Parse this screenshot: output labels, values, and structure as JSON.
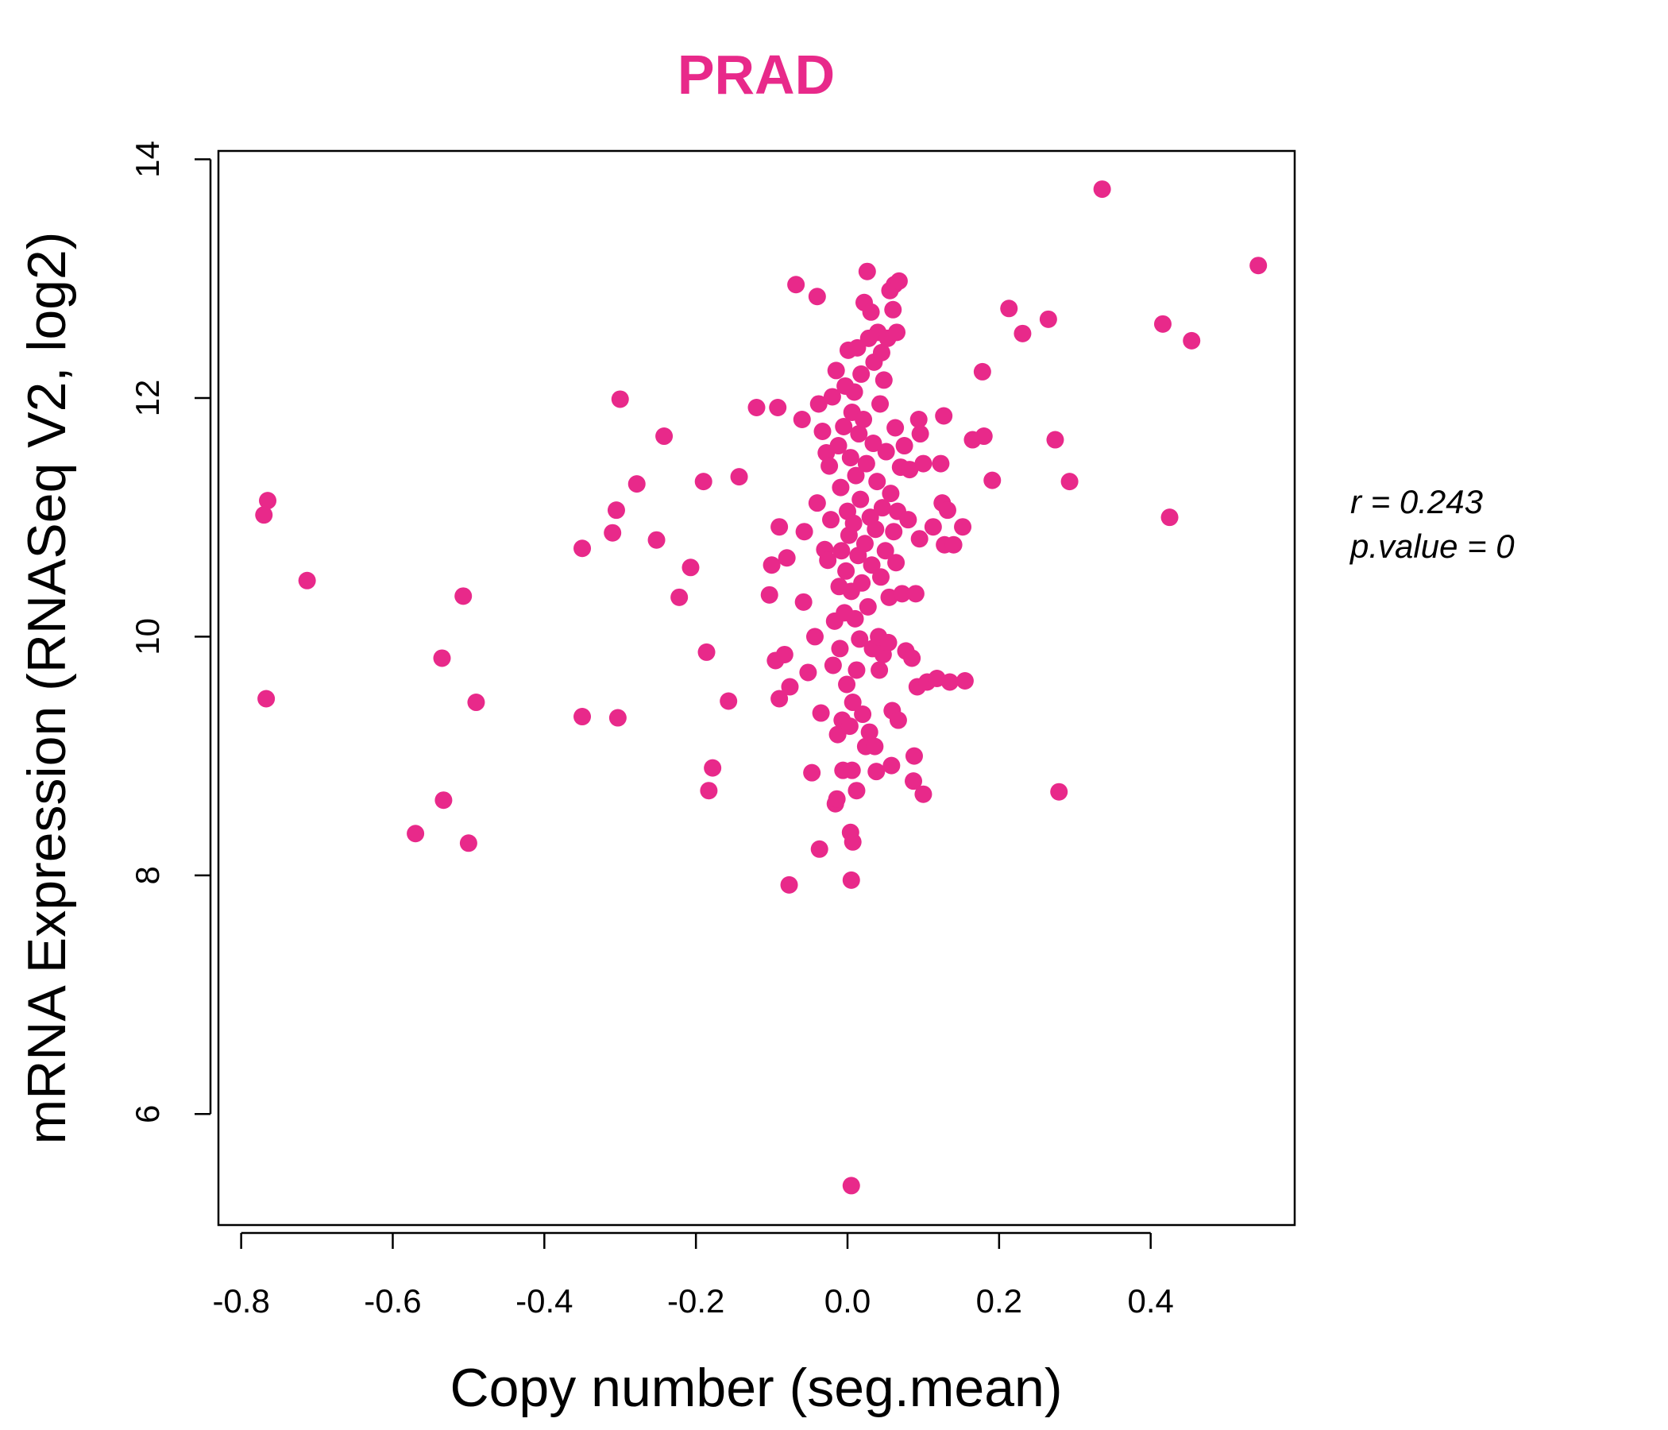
{
  "chart_data": {
    "type": "scatter",
    "title": "PRAD",
    "xlabel": "Copy number (seg.mean)",
    "ylabel": "mRNA Expression (RNASeq V2, log2)",
    "xlim": [
      -0.83,
      0.59
    ],
    "ylim": [
      5.07,
      14.07
    ],
    "x_ticks": [
      -0.8,
      -0.6,
      -0.4,
      -0.2,
      0.0,
      0.2,
      0.4
    ],
    "x_tick_labels": [
      "-0.8",
      "-0.6",
      "-0.4",
      "-0.2",
      "0.0",
      "0.2",
      "0.4"
    ],
    "y_ticks": [
      6,
      8,
      10,
      12,
      14
    ],
    "y_tick_labels": [
      "6",
      "8",
      "10",
      "12",
      "14"
    ],
    "grid": false,
    "legend": "none",
    "point_color": "#E8298A",
    "title_color": "#E8298A",
    "annotation": {
      "r_label": "r = 0.243",
      "p_label": "p.value = 0"
    },
    "points": [
      {
        "x": -0.77,
        "y": 11.02
      },
      {
        "x": -0.765,
        "y": 11.14
      },
      {
        "x": -0.767,
        "y": 9.48
      },
      {
        "x": -0.713,
        "y": 10.47
      },
      {
        "x": -0.57,
        "y": 8.35
      },
      {
        "x": -0.535,
        "y": 9.82
      },
      {
        "x": -0.533,
        "y": 8.63
      },
      {
        "x": -0.507,
        "y": 10.34
      },
      {
        "x": -0.5,
        "y": 8.27
      },
      {
        "x": -0.49,
        "y": 9.45
      },
      {
        "x": -0.35,
        "y": 10.74
      },
      {
        "x": -0.35,
        "y": 9.33
      },
      {
        "x": -0.31,
        "y": 10.87
      },
      {
        "x": -0.305,
        "y": 11.06
      },
      {
        "x": -0.303,
        "y": 9.32
      },
      {
        "x": -0.3,
        "y": 11.99
      },
      {
        "x": -0.278,
        "y": 11.28
      },
      {
        "x": -0.252,
        "y": 10.81
      },
      {
        "x": -0.242,
        "y": 11.68
      },
      {
        "x": -0.222,
        "y": 10.33
      },
      {
        "x": -0.207,
        "y": 10.58
      },
      {
        "x": -0.19,
        "y": 11.3
      },
      {
        "x": -0.186,
        "y": 9.87
      },
      {
        "x": -0.183,
        "y": 8.71
      },
      {
        "x": -0.178,
        "y": 8.9
      },
      {
        "x": -0.157,
        "y": 9.46
      },
      {
        "x": -0.143,
        "y": 11.34
      },
      {
        "x": -0.12,
        "y": 11.92
      },
      {
        "x": -0.103,
        "y": 10.35
      },
      {
        "x": -0.1,
        "y": 10.6
      },
      {
        "x": -0.095,
        "y": 9.8
      },
      {
        "x": -0.092,
        "y": 11.92
      },
      {
        "x": -0.09,
        "y": 10.92
      },
      {
        "x": -0.09,
        "y": 9.48
      },
      {
        "x": -0.083,
        "y": 9.85
      },
      {
        "x": -0.08,
        "y": 10.66
      },
      {
        "x": -0.077,
        "y": 7.92
      },
      {
        "x": -0.076,
        "y": 9.58
      },
      {
        "x": -0.068,
        "y": 12.95
      },
      {
        "x": -0.06,
        "y": 11.82
      },
      {
        "x": -0.058,
        "y": 10.29
      },
      {
        "x": -0.057,
        "y": 10.88
      },
      {
        "x": -0.052,
        "y": 9.7
      },
      {
        "x": -0.047,
        "y": 8.86
      },
      {
        "x": -0.043,
        "y": 10.0
      },
      {
        "x": -0.04,
        "y": 12.85
      },
      {
        "x": -0.04,
        "y": 11.12
      },
      {
        "x": -0.038,
        "y": 11.95
      },
      {
        "x": -0.037,
        "y": 8.22
      },
      {
        "x": -0.035,
        "y": 9.36
      },
      {
        "x": -0.033,
        "y": 11.72
      },
      {
        "x": -0.03,
        "y": 10.73
      },
      {
        "x": -0.028,
        "y": 11.54
      },
      {
        "x": -0.026,
        "y": 10.64
      },
      {
        "x": -0.024,
        "y": 11.43
      },
      {
        "x": -0.022,
        "y": 10.98
      },
      {
        "x": -0.02,
        "y": 12.01
      },
      {
        "x": -0.019,
        "y": 9.76
      },
      {
        "x": -0.017,
        "y": 10.13
      },
      {
        "x": -0.016,
        "y": 8.6
      },
      {
        "x": -0.015,
        "y": 12.23
      },
      {
        "x": -0.014,
        "y": 8.64
      },
      {
        "x": -0.013,
        "y": 9.18
      },
      {
        "x": -0.012,
        "y": 11.6
      },
      {
        "x": -0.011,
        "y": 10.42
      },
      {
        "x": -0.01,
        "y": 9.9
      },
      {
        "x": -0.009,
        "y": 11.25
      },
      {
        "x": -0.008,
        "y": 10.72
      },
      {
        "x": -0.007,
        "y": 9.3
      },
      {
        "x": -0.006,
        "y": 8.88
      },
      {
        "x": -0.005,
        "y": 11.76
      },
      {
        "x": -0.004,
        "y": 10.2
      },
      {
        "x": -0.003,
        "y": 12.1
      },
      {
        "x": -0.002,
        "y": 10.55
      },
      {
        "x": -0.001,
        "y": 9.6
      },
      {
        "x": 0.0,
        "y": 11.05
      },
      {
        "x": 0.001,
        "y": 12.4
      },
      {
        "x": 0.002,
        "y": 10.85
      },
      {
        "x": 0.003,
        "y": 9.25
      },
      {
        "x": 0.004,
        "y": 11.5
      },
      {
        "x": 0.004,
        "y": 8.36
      },
      {
        "x": 0.005,
        "y": 10.38
      },
      {
        "x": 0.005,
        "y": 5.4
      },
      {
        "x": 0.005,
        "y": 7.96
      },
      {
        "x": 0.006,
        "y": 11.88
      },
      {
        "x": 0.006,
        "y": 8.88
      },
      {
        "x": 0.007,
        "y": 9.45
      },
      {
        "x": 0.007,
        "y": 8.28
      },
      {
        "x": 0.008,
        "y": 10.95
      },
      {
        "x": 0.009,
        "y": 12.05
      },
      {
        "x": 0.01,
        "y": 10.15
      },
      {
        "x": 0.011,
        "y": 11.35
      },
      {
        "x": 0.012,
        "y": 8.71
      },
      {
        "x": 0.012,
        "y": 9.72
      },
      {
        "x": 0.013,
        "y": 12.42
      },
      {
        "x": 0.014,
        "y": 10.68
      },
      {
        "x": 0.015,
        "y": 11.7
      },
      {
        "x": 0.016,
        "y": 9.98
      },
      {
        "x": 0.017,
        "y": 11.15
      },
      {
        "x": 0.018,
        "y": 12.2
      },
      {
        "x": 0.019,
        "y": 10.45
      },
      {
        "x": 0.02,
        "y": 9.35
      },
      {
        "x": 0.021,
        "y": 11.82
      },
      {
        "x": 0.022,
        "y": 12.8
      },
      {
        "x": 0.023,
        "y": 10.78
      },
      {
        "x": 0.024,
        "y": 9.08
      },
      {
        "x": 0.025,
        "y": 11.45
      },
      {
        "x": 0.026,
        "y": 13.06
      },
      {
        "x": 0.027,
        "y": 10.25
      },
      {
        "x": 0.028,
        "y": 12.5
      },
      {
        "x": 0.029,
        "y": 9.2
      },
      {
        "x": 0.03,
        "y": 11.0
      },
      {
        "x": 0.031,
        "y": 12.72
      },
      {
        "x": 0.032,
        "y": 10.6
      },
      {
        "x": 0.033,
        "y": 9.9
      },
      {
        "x": 0.034,
        "y": 11.62
      },
      {
        "x": 0.035,
        "y": 12.3
      },
      {
        "x": 0.036,
        "y": 9.08
      },
      {
        "x": 0.037,
        "y": 10.9
      },
      {
        "x": 0.038,
        "y": 8.87
      },
      {
        "x": 0.039,
        "y": 11.3
      },
      {
        "x": 0.04,
        "y": 12.55
      },
      {
        "x": 0.041,
        "y": 10.0
      },
      {
        "x": 0.042,
        "y": 9.72
      },
      {
        "x": 0.043,
        "y": 11.95
      },
      {
        "x": 0.044,
        "y": 10.5
      },
      {
        "x": 0.045,
        "y": 12.38
      },
      {
        "x": 0.046,
        "y": 11.08
      },
      {
        "x": 0.047,
        "y": 9.85
      },
      {
        "x": 0.048,
        "y": 12.15
      },
      {
        "x": 0.05,
        "y": 10.72
      },
      {
        "x": 0.051,
        "y": 11.55
      },
      {
        "x": 0.053,
        "y": 12.5
      },
      {
        "x": 0.054,
        "y": 9.95
      },
      {
        "x": 0.055,
        "y": 10.33
      },
      {
        "x": 0.056,
        "y": 12.9
      },
      {
        "x": 0.057,
        "y": 11.2
      },
      {
        "x": 0.058,
        "y": 8.92
      },
      {
        "x": 0.059,
        "y": 9.38
      },
      {
        "x": 0.06,
        "y": 12.74
      },
      {
        "x": 0.061,
        "y": 10.88
      },
      {
        "x": 0.062,
        "y": 12.95
      },
      {
        "x": 0.063,
        "y": 11.75
      },
      {
        "x": 0.064,
        "y": 10.62
      },
      {
        "x": 0.065,
        "y": 12.55
      },
      {
        "x": 0.066,
        "y": 11.05
      },
      {
        "x": 0.067,
        "y": 9.3
      },
      {
        "x": 0.068,
        "y": 12.98
      },
      {
        "x": 0.07,
        "y": 11.42
      },
      {
        "x": 0.072,
        "y": 10.36
      },
      {
        "x": 0.075,
        "y": 11.6
      },
      {
        "x": 0.077,
        "y": 9.88
      },
      {
        "x": 0.08,
        "y": 10.98
      },
      {
        "x": 0.082,
        "y": 11.4
      },
      {
        "x": 0.085,
        "y": 9.82
      },
      {
        "x": 0.087,
        "y": 8.79
      },
      {
        "x": 0.088,
        "y": 9.0
      },
      {
        "x": 0.09,
        "y": 10.36
      },
      {
        "x": 0.092,
        "y": 9.58
      },
      {
        "x": 0.094,
        "y": 11.82
      },
      {
        "x": 0.095,
        "y": 10.82
      },
      {
        "x": 0.096,
        "y": 11.7
      },
      {
        "x": 0.1,
        "y": 11.45
      },
      {
        "x": 0.1,
        "y": 8.68
      },
      {
        "x": 0.105,
        "y": 9.62
      },
      {
        "x": 0.113,
        "y": 10.92
      },
      {
        "x": 0.118,
        "y": 9.65
      },
      {
        "x": 0.123,
        "y": 11.45
      },
      {
        "x": 0.125,
        "y": 11.12
      },
      {
        "x": 0.127,
        "y": 11.85
      },
      {
        "x": 0.128,
        "y": 10.77
      },
      {
        "x": 0.132,
        "y": 11.06
      },
      {
        "x": 0.135,
        "y": 9.62
      },
      {
        "x": 0.14,
        "y": 10.77
      },
      {
        "x": 0.152,
        "y": 10.92
      },
      {
        "x": 0.155,
        "y": 9.63
      },
      {
        "x": 0.165,
        "y": 11.65
      },
      {
        "x": 0.178,
        "y": 12.22
      },
      {
        "x": 0.18,
        "y": 11.68
      },
      {
        "x": 0.191,
        "y": 11.31
      },
      {
        "x": 0.213,
        "y": 12.75
      },
      {
        "x": 0.231,
        "y": 12.54
      },
      {
        "x": 0.265,
        "y": 12.66
      },
      {
        "x": 0.274,
        "y": 11.65
      },
      {
        "x": 0.279,
        "y": 8.7
      },
      {
        "x": 0.293,
        "y": 11.3
      },
      {
        "x": 0.336,
        "y": 13.75
      },
      {
        "x": 0.416,
        "y": 12.62
      },
      {
        "x": 0.425,
        "y": 11.0
      },
      {
        "x": 0.454,
        "y": 12.48
      },
      {
        "x": 0.542,
        "y": 13.11
      }
    ]
  }
}
